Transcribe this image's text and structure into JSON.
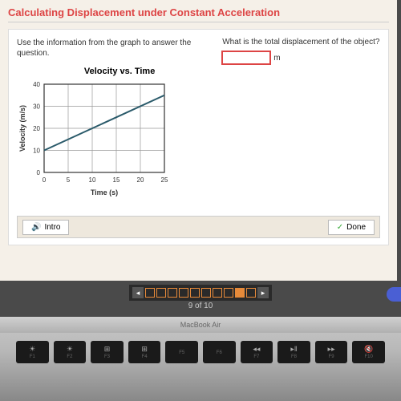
{
  "header": {
    "title": "Calculating Displacement under Constant Acceleration"
  },
  "instruction": "Use the information from the graph to answer the question.",
  "question": "What is the total displacement of the object?",
  "answer": {
    "value": "",
    "unit": "m"
  },
  "chart": {
    "title": "Velocity vs. Time",
    "type": "line",
    "xlabel": "Time (s)",
    "ylabel": "Velocity (m/s)",
    "xlim": [
      0,
      25
    ],
    "ylim": [
      0,
      40
    ],
    "xtick_step": 5,
    "ytick_step": 10,
    "xticks": [
      0,
      5,
      10,
      15,
      20,
      25
    ],
    "yticks": [
      0,
      10,
      20,
      30,
      40
    ],
    "line_color": "#2a5a6a",
    "line_width": 2,
    "grid_color": "#999",
    "background_color": "#fff",
    "axis_color": "#333",
    "label_fontsize": 9,
    "tick_fontsize": 8,
    "data_points": [
      {
        "x": 0,
        "y": 10
      },
      {
        "x": 25,
        "y": 35
      }
    ]
  },
  "footer": {
    "intro_label": "Intro",
    "done_label": "Done"
  },
  "progress": {
    "total": 10,
    "current": 9,
    "text": "9 of 10",
    "box_border": "#e68a3a",
    "box_active_bg": "#e68a3a"
  },
  "laptop": {
    "brand": "MacBook Air",
    "keys": [
      {
        "icon": "☀",
        "label": "F1"
      },
      {
        "icon": "☀",
        "label": "F2"
      },
      {
        "icon": "⊞",
        "label": "F3"
      },
      {
        "icon": "⊞",
        "label": "F4"
      },
      {
        "icon": "",
        "label": "F5"
      },
      {
        "icon": "",
        "label": "F6"
      },
      {
        "icon": "◂◂",
        "label": "F7"
      },
      {
        "icon": "▸‖",
        "label": "F8"
      },
      {
        "icon": "▸▸",
        "label": "F9"
      },
      {
        "icon": "🔇",
        "label": "F10"
      }
    ]
  }
}
